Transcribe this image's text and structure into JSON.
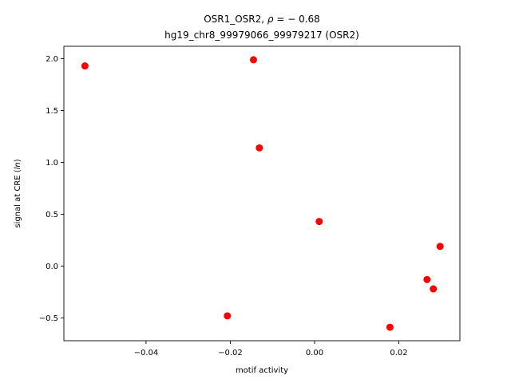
{
  "chart_data": {
    "type": "scatter",
    "title_line1_pre": "OSR1_OSR2, ",
    "title_rho": "ρ",
    "title_line1_post": " = − 0.68",
    "title_line2": "hg19_chr8_99979066_99979217 (OSR2)",
    "xlabel": "motif activity",
    "ylabel_pre": "signal at CRE (",
    "ylabel_italic": "ln",
    "ylabel_post": ")",
    "xlim": [
      -0.0595,
      0.0345
    ],
    "ylim": [
      -0.72,
      2.12
    ],
    "xticks": [
      {
        "value": -0.04,
        "label": "−0.04"
      },
      {
        "value": -0.02,
        "label": "−0.02"
      },
      {
        "value": 0.0,
        "label": "0.00"
      },
      {
        "value": 0.02,
        "label": "0.02"
      }
    ],
    "yticks": [
      {
        "value": -0.5,
        "label": "−0.5"
      },
      {
        "value": 0.0,
        "label": "0.0"
      },
      {
        "value": 0.5,
        "label": "0.5"
      },
      {
        "value": 1.0,
        "label": "1.0"
      },
      {
        "value": 1.5,
        "label": "1.5"
      },
      {
        "value": 2.0,
        "label": "2.0"
      }
    ],
    "marker_color": "#ff0000",
    "grid": false,
    "points": [
      {
        "x": -0.0545,
        "y": 1.93
      },
      {
        "x": -0.0145,
        "y": 1.99
      },
      {
        "x": -0.0131,
        "y": 1.14
      },
      {
        "x": -0.0207,
        "y": -0.48
      },
      {
        "x": 0.0011,
        "y": 0.43
      },
      {
        "x": 0.0179,
        "y": -0.59
      },
      {
        "x": 0.0267,
        "y": -0.13
      },
      {
        "x": 0.0282,
        "y": -0.22
      },
      {
        "x": 0.0298,
        "y": 0.19
      }
    ]
  }
}
